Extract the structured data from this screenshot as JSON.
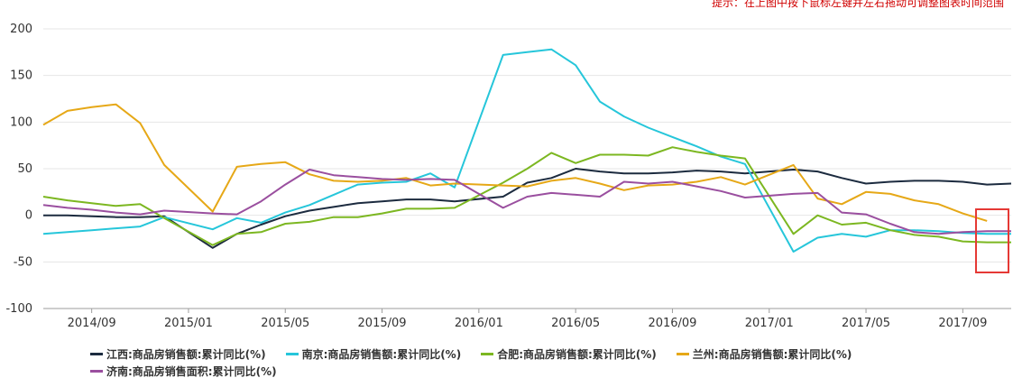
{
  "hint": "提示：在上图中按下鼠标左键并左右拖动可调整图表时间范围",
  "chart_data": {
    "type": "line",
    "ylim": [
      -100,
      200
    ],
    "yticks": [
      -100,
      -50,
      0,
      50,
      100,
      150,
      200
    ],
    "x_range": [
      "2014-07",
      "2017-11"
    ],
    "xticks": [
      "2014-09",
      "2015-01",
      "2015-05",
      "2015-09",
      "2016-01",
      "2016-05",
      "2016-09",
      "2017-01",
      "2017-05",
      "2017-09"
    ],
    "xtick_labels": [
      "2014/09",
      "2015/01",
      "2015/05",
      "2015/09",
      "2016/01",
      "2016/05",
      "2016/09",
      "2017/01",
      "2017/05",
      "2017/09"
    ],
    "grid": true,
    "legend_position": "bottom",
    "series": [
      {
        "name": "江西:商品房销售额:累计同比(%)",
        "color": "#1c2b3f",
        "x": [
          "2014-07",
          "2014-08",
          "2014-09",
          "2014-10",
          "2014-11",
          "2014-12",
          "2015-02",
          "2015-03",
          "2015-04",
          "2015-05",
          "2015-06",
          "2015-07",
          "2015-08",
          "2015-09",
          "2015-10",
          "2015-11",
          "2015-12",
          "2016-02",
          "2016-03",
          "2016-04",
          "2016-05",
          "2016-06",
          "2016-07",
          "2016-08",
          "2016-09",
          "2016-10",
          "2016-11",
          "2016-12",
          "2017-02",
          "2017-03",
          "2017-04",
          "2017-05",
          "2017-06",
          "2017-07",
          "2017-08",
          "2017-09",
          "2017-10",
          "2017-11"
        ],
        "values": [
          0,
          0,
          -1,
          -2,
          -2,
          -1,
          -35,
          -20,
          -10,
          -1,
          5,
          9,
          13,
          15,
          17,
          17,
          15,
          20,
          35,
          40,
          50,
          47,
          45,
          45,
          46,
          48,
          47,
          45,
          49,
          47,
          40,
          34,
          36,
          37,
          37,
          36,
          33,
          34
        ]
      },
      {
        "name": "南京:商品房销售额:累计同比(%)",
        "color": "#26c6da",
        "x": [
          "2014-07",
          "2014-08",
          "2014-09",
          "2014-10",
          "2014-11",
          "2014-12",
          "2015-02",
          "2015-03",
          "2015-04",
          "2015-05",
          "2015-06",
          "2015-07",
          "2015-08",
          "2015-09",
          "2015-10",
          "2015-11",
          "2015-12",
          "2016-02",
          "2016-03",
          "2016-04",
          "2016-05",
          "2016-06",
          "2016-07",
          "2016-08",
          "2016-09",
          "2016-10",
          "2016-11",
          "2016-12",
          "2017-02",
          "2017-03",
          "2017-04",
          "2017-05",
          "2017-06",
          "2017-07",
          "2017-08",
          "2017-09",
          "2017-10",
          "2017-11"
        ],
        "values": [
          -20,
          -18,
          -16,
          -14,
          -12,
          -2,
          -15,
          -3,
          -8,
          3,
          11,
          22,
          33,
          35,
          36,
          45,
          30,
          172,
          175,
          178,
          161,
          122,
          106,
          94,
          84,
          74,
          63,
          55,
          -39,
          -24,
          -20,
          -23,
          -16,
          -16,
          -17,
          -19,
          -20,
          -20
        ]
      },
      {
        "name": "合肥:商品房销售额:累计同比(%)",
        "color": "#7cb721",
        "x": [
          "2014-07",
          "2014-08",
          "2014-09",
          "2014-10",
          "2014-11",
          "2014-12",
          "2015-02",
          "2015-03",
          "2015-04",
          "2015-05",
          "2015-06",
          "2015-07",
          "2015-08",
          "2015-09",
          "2015-10",
          "2015-11",
          "2015-12",
          "2016-02",
          "2016-03",
          "2016-04",
          "2016-05",
          "2016-06",
          "2016-07",
          "2016-08",
          "2016-09",
          "2016-10",
          "2016-11",
          "2016-12",
          "2017-02",
          "2017-03",
          "2017-04",
          "2017-05",
          "2017-06",
          "2017-07",
          "2017-08",
          "2017-09",
          "2017-10",
          "2017-11"
        ],
        "values": [
          20,
          16,
          13,
          10,
          12,
          -3,
          -32,
          -20,
          -18,
          -9,
          -7,
          -2,
          -2,
          2,
          7,
          7,
          8,
          35,
          50,
          67,
          56,
          65,
          65,
          64,
          73,
          68,
          64,
          61,
          -20,
          0,
          -10,
          -8,
          -16,
          -21,
          -23,
          -28,
          -29,
          -29
        ]
      },
      {
        "name": "兰州:商品房销售额:累计同比(%)",
        "color": "#e6a817",
        "x": [
          "2014-07",
          "2014-08",
          "2014-09",
          "2014-10",
          "2014-11",
          "2014-12",
          "2015-02",
          "2015-03",
          "2015-04",
          "2015-05",
          "2015-06",
          "2015-07",
          "2015-08",
          "2015-09",
          "2015-10",
          "2015-11",
          "2015-12",
          "2016-02",
          "2016-03",
          "2016-04",
          "2016-05",
          "2016-06",
          "2016-07",
          "2016-08",
          "2016-09",
          "2016-10",
          "2016-11",
          "2016-12",
          "2017-02",
          "2017-03",
          "2017-04",
          "2017-05",
          "2017-06",
          "2017-07",
          "2017-08",
          "2017-09",
          "2017-10"
        ],
        "values": [
          97,
          112,
          116,
          119,
          99,
          54,
          4,
          52,
          55,
          57,
          44,
          37,
          36,
          37,
          40,
          32,
          34,
          32,
          31,
          37,
          40,
          34,
          27,
          32,
          33,
          36,
          41,
          33,
          54,
          18,
          12,
          25,
          23,
          16,
          12,
          2,
          -6
        ]
      },
      {
        "name": "济南:商品房销售面积:累计同比(%)",
        "color": "#9a4f9f",
        "x": [
          "2014-07",
          "2014-08",
          "2014-09",
          "2014-10",
          "2014-11",
          "2014-12",
          "2015-02",
          "2015-03",
          "2015-04",
          "2015-05",
          "2015-06",
          "2015-07",
          "2015-08",
          "2015-09",
          "2015-10",
          "2015-11",
          "2015-12",
          "2016-02",
          "2016-03",
          "2016-04",
          "2016-05",
          "2016-06",
          "2016-07",
          "2016-08",
          "2016-09",
          "2016-10",
          "2016-11",
          "2016-12",
          "2017-02",
          "2017-03",
          "2017-04",
          "2017-05",
          "2017-06",
          "2017-07",
          "2017-08",
          "2017-09",
          "2017-10",
          "2017-11"
        ],
        "values": [
          11,
          8,
          6,
          3,
          1,
          5,
          2,
          1,
          15,
          33,
          49,
          43,
          41,
          39,
          38,
          39,
          38,
          8,
          20,
          24,
          22,
          20,
          36,
          34,
          36,
          31,
          26,
          19,
          23,
          24,
          3,
          1,
          -9,
          -18,
          -20,
          -18,
          -17,
          -17
        ]
      }
    ]
  }
}
